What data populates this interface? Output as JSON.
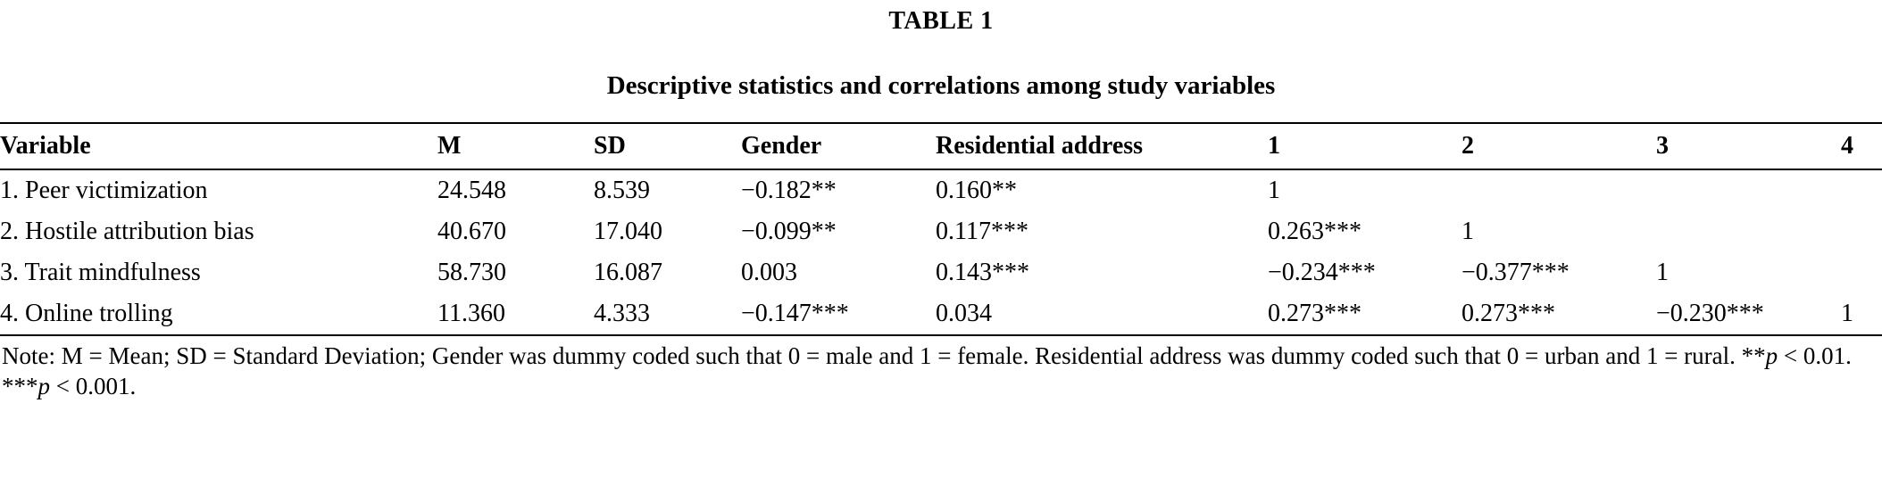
{
  "title": "TABLE 1",
  "subtitle": "Descriptive statistics and correlations among study variables",
  "table": {
    "columns": [
      "Variable",
      "M",
      "SD",
      "Gender",
      "Residential address",
      "1",
      "2",
      "3",
      "4"
    ],
    "rows": [
      [
        "1. Peer victimization",
        "24.548",
        "8.539",
        "−0.182**",
        "0.160**",
        "1",
        "",
        "",
        ""
      ],
      [
        "2. Hostile attribution bias",
        "40.670",
        "17.040",
        "−0.099**",
        "0.117***",
        "0.263***",
        "1",
        "",
        ""
      ],
      [
        "3. Trait mindfulness",
        "58.730",
        "16.087",
        "0.003",
        "0.143***",
        "−0.234***",
        "−0.377***",
        "1",
        ""
      ],
      [
        "4. Online trolling",
        "11.360",
        "4.333",
        "−0.147***",
        "0.034",
        "0.273***",
        "0.273***",
        "−0.230***",
        "1"
      ]
    ]
  },
  "note": {
    "segments": [
      {
        "t": "Note: M = Mean; SD = Standard Deviation; Gender was dummy coded such that 0 = male and 1 = female. Residential address was dummy coded such that 0 = urban and 1 = rural. **",
        "i": false
      },
      {
        "t": "p",
        "i": true
      },
      {
        "t": " < 0.01. ***",
        "i": false
      },
      {
        "t": "p",
        "i": true
      },
      {
        "t": " < 0.001.",
        "i": false
      }
    ]
  }
}
